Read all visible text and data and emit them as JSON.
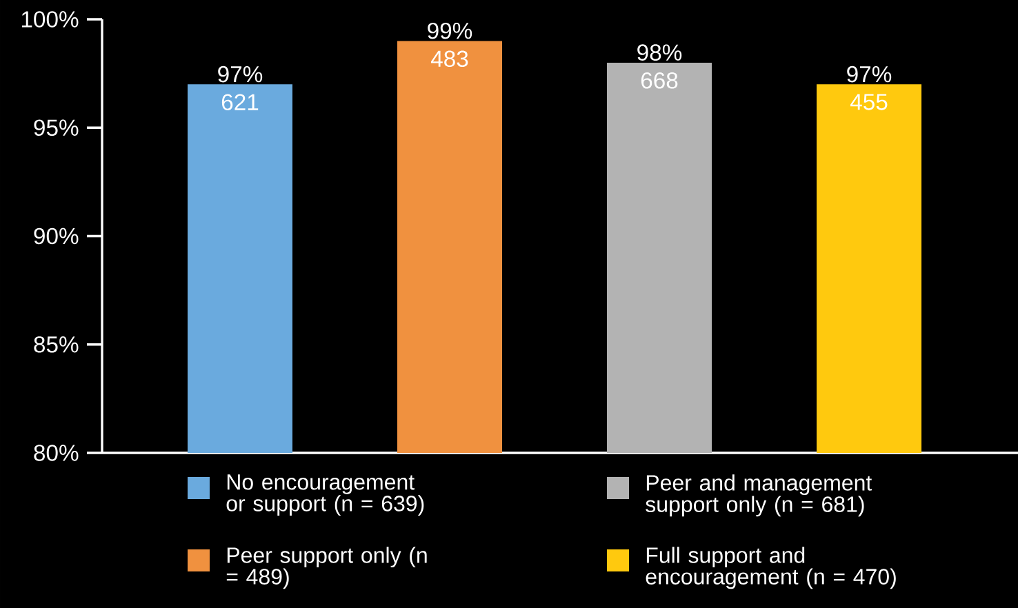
{
  "chart_data": {
    "type": "bar",
    "categories": [
      null,
      null,
      null,
      null
    ],
    "series": [
      {
        "name": "No encouragement or support (n = 639)",
        "color": "#6aaade",
        "values": [
          97,
          null,
          null,
          null
        ],
        "value_labels": [
          "97%",
          null,
          null,
          null
        ]
      },
      {
        "name": "Peer support only (n = 489)",
        "color": "#f0913f",
        "values": [
          null,
          99,
          null,
          null
        ],
        "value_labels": [
          null,
          "99%",
          null,
          null
        ]
      },
      {
        "name": "Peer and management support only (n = 681)",
        "color": "#b3b3b3",
        "values": [
          null,
          null,
          98,
          null
        ],
        "value_labels": [
          null,
          null,
          "98%",
          null
        ]
      },
      {
        "name": "Full support and encouragement (n = 470)",
        "color": "#ffc90e",
        "values": [
          null,
          null,
          null,
          97
        ],
        "value_labels": [
          null,
          null,
          null,
          "97%"
        ]
      }
    ],
    "annotations": [
      {
        "text": "621",
        "y": 97
      },
      {
        "text": "483",
        "y": 99
      },
      {
        "text": "668",
        "y": 98
      },
      {
        "text": "455",
        "y": 97
      }
    ],
    "ylim": [
      80,
      100
    ],
    "yticks": [
      {
        "value": 80,
        "label": "80%"
      },
      {
        "value": 85,
        "label": "85%"
      },
      {
        "value": 90,
        "label": "90%"
      },
      {
        "value": 95,
        "label": "95%"
      },
      {
        "value": 100,
        "label": "100%"
      }
    ],
    "legend": "bottom"
  }
}
